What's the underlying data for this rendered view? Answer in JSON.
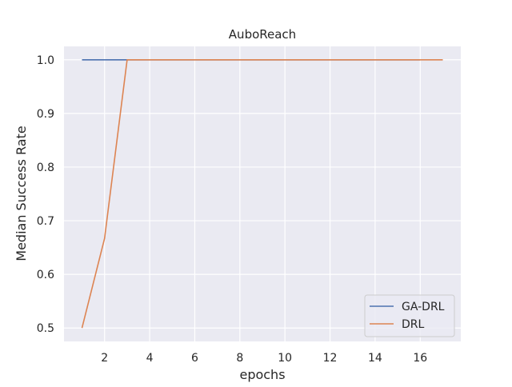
{
  "chart_data": {
    "type": "line",
    "title": "AuboReach",
    "xlabel": "epochs",
    "ylabel": "Median Success Rate",
    "xlim": [
      0.2,
      17.8
    ],
    "ylim": [
      0.475,
      1.025
    ],
    "xticks": [
      2,
      4,
      6,
      8,
      10,
      12,
      14,
      16
    ],
    "yticks": [
      0.5,
      0.6,
      0.7,
      0.8,
      0.9,
      1.0
    ],
    "ytick_labels": [
      "0.5",
      "0.6",
      "0.7",
      "0.8",
      "0.9",
      "1.0"
    ],
    "grid": true,
    "legend_position": "lower-right",
    "series": [
      {
        "name": "GA-DRL",
        "color": "#4c72b0",
        "x": [
          1,
          2,
          3,
          4,
          5,
          6,
          7,
          8,
          9,
          10,
          11,
          12,
          13,
          14,
          15,
          16
        ],
        "y": [
          1.0,
          1.0,
          1.0,
          1.0,
          1.0,
          1.0,
          1.0,
          1.0,
          1.0,
          1.0,
          1.0,
          1.0,
          1.0,
          1.0,
          1.0,
          1.0
        ]
      },
      {
        "name": "DRL",
        "color": "#dd8452",
        "x": [
          1,
          2,
          3,
          4,
          5,
          6,
          7,
          8,
          9,
          10,
          11,
          12,
          13,
          14,
          15,
          16,
          17
        ],
        "y": [
          0.5,
          0.667,
          1.0,
          1.0,
          1.0,
          1.0,
          1.0,
          1.0,
          1.0,
          1.0,
          1.0,
          1.0,
          1.0,
          1.0,
          1.0,
          1.0,
          1.0
        ]
      }
    ]
  }
}
